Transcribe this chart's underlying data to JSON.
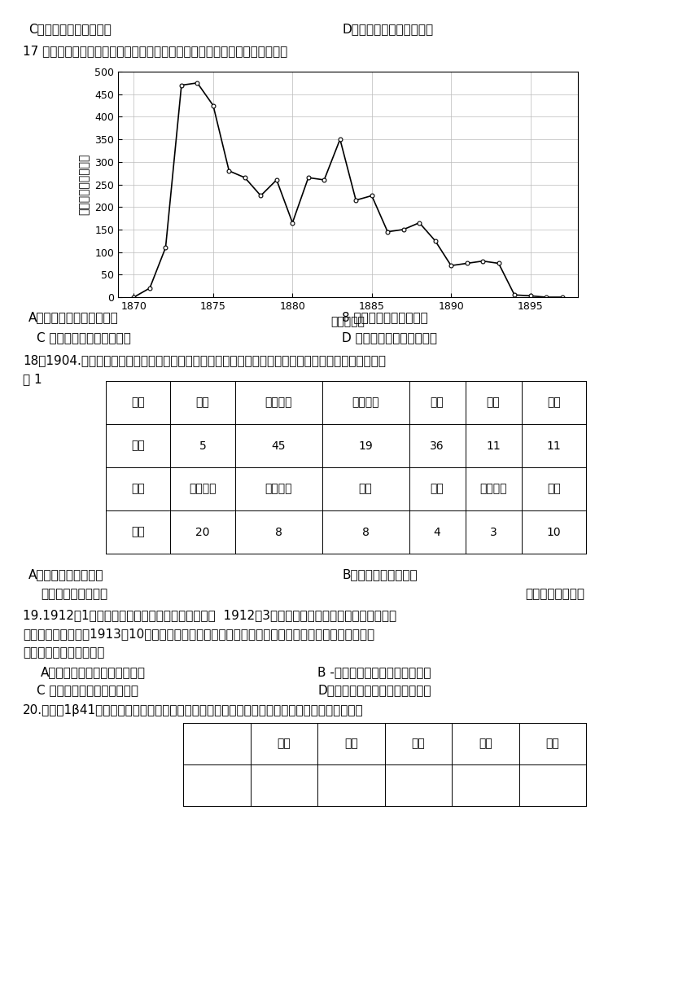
{
  "page_bg": "#ffffff",
  "line1_C": "C．传播了中华传统文化",
  "line1_D": "D．反映了社会结构的变化",
  "q17_text": "17 下图是洋商在上海《申报》投放的西方军械广告总量统计图，它反映了（）",
  "chart_years": [
    1870,
    1871,
    1872,
    1873,
    1874,
    1875,
    1876,
    1877,
    1878,
    1879,
    1880,
    1881,
    1882,
    1883,
    1884,
    1885,
    1886,
    1887,
    1888,
    1889,
    1890,
    1891,
    1892,
    1893,
    1894,
    1895,
    1896,
    1897
  ],
  "chart_values": [
    0,
    20,
    110,
    470,
    475,
    425,
    280,
    265,
    225,
    260,
    165,
    265,
    260,
    350,
    215,
    225,
    145,
    150,
    165,
    125,
    70,
    75,
    80,
    75,
    5,
    3,
    0,
    0
  ],
  "chart_ylabel": "军械广告总量（则）",
  "chart_xlabel": "年份（年）",
  "chart_yticks": [
    0,
    50,
    100,
    150,
    200,
    250,
    300,
    350,
    400,
    450,
    500
  ],
  "chart_xticks": [
    1870,
    1875,
    1880,
    1885,
    1890,
    1895
  ],
  "q17_A": "A．民族资本主义迅速发展",
  "q17_B": "8 清末新政取得一定成效",
  "q17_C": "C 早期现代化尝试效果显现",
  "q17_D": "D 列强放松了对中国的侵略",
  "q18_line1": "18．1904.年清政府学部颁布《奏定学堂章程》，规定了中等学堂如下课程、课时。从中可以看出清末教",
  "q18_line2": "育 1",
  "table1_row1": [
    "课程",
    "修身",
    "卖经讲经",
    "中学文学",
    "外语",
    "历史",
    "地理"
  ],
  "table1_row2": [
    "课时",
    "5",
    "45",
    "19",
    "36",
    "11",
    "11"
  ],
  "table1_row3": [
    "课程",
    "几何代数",
    "植物动物",
    "理化",
    "图画",
    "法制理财",
    "体操"
  ],
  "table1_row4": [
    "课时",
    "20",
    "8",
    "8",
    "4",
    "3",
    "10"
  ],
  "q18_A": "A．改革具有民族特色",
  "q18_B": "B．重在培养维新人才",
  "q18_C": "　形成了完整的体系",
  "q18_D": "旨在提升国民素质",
  "q19_line1": "19.1912年1月，南京临时政府成立时实行总统制；  1912年3月颁布的《中华民国临时约法》，改总",
  "q19_line2": "统制为责任内阁制；1913年10月，袁世凯就任正式大总统后，又改责任内阁制为总统制。上述现象反",
  "q19_line3": "映的实质问题是（　　）",
  "q19_A": "A．民生与专制之间的斗争激烈",
  "q19_B": "B -君主专制独裁的观念根深蒂固",
  "q19_C": "C 责任内阁制在中国难以推行",
  "q19_D": "D．中国缺乏民主共和的社会基础",
  "q20_text": "20.如表为1β41年年底晋西北敌后亢日根据地党委各级干部成分情况统计表。这一干部成分构成（",
  "table2_cols": [
    "",
    "地主",
    "富农",
    "中农",
    "贫农",
    "其他"
  ]
}
